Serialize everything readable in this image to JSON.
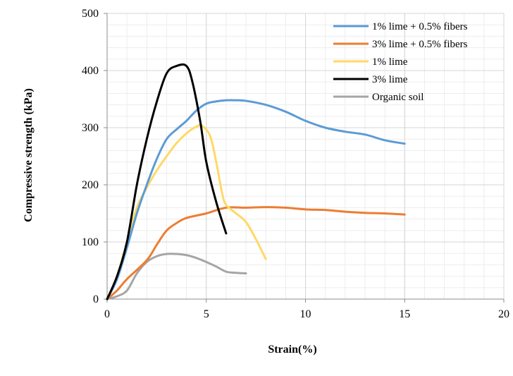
{
  "chart_data": {
    "type": "line",
    "title": "",
    "xlabel": "Strain(%)",
    "ylabel": "Compressive strength (kPa)",
    "xlim": [
      0,
      20
    ],
    "ylim": [
      0,
      500
    ],
    "x_ticks": [
      0,
      5,
      10,
      15,
      20
    ],
    "y_ticks": [
      0,
      100,
      200,
      300,
      400,
      500
    ],
    "grid": true,
    "legend_position": "top-right",
    "series": [
      {
        "name": "1% lime + 0.5% fibers",
        "color": "#5B9BD5",
        "points": [
          [
            0,
            0
          ],
          [
            0.5,
            35
          ],
          [
            1,
            90
          ],
          [
            1.5,
            150
          ],
          [
            2,
            200
          ],
          [
            2.5,
            245
          ],
          [
            3,
            280
          ],
          [
            3.5,
            297
          ],
          [
            4,
            312
          ],
          [
            4.5,
            330
          ],
          [
            5,
            342
          ],
          [
            5.5,
            346
          ],
          [
            6,
            348
          ],
          [
            6.5,
            348
          ],
          [
            7,
            347
          ],
          [
            8,
            340
          ],
          [
            9,
            328
          ],
          [
            10,
            312
          ],
          [
            11,
            300
          ],
          [
            12,
            293
          ],
          [
            13,
            288
          ],
          [
            14,
            278
          ],
          [
            15,
            272
          ]
        ]
      },
      {
        "name": "3% lime + 0.5% fibers",
        "color": "#ED7D31",
        "points": [
          [
            0,
            0
          ],
          [
            0.5,
            15
          ],
          [
            1,
            35
          ],
          [
            2,
            68
          ],
          [
            2.5,
            95
          ],
          [
            3,
            120
          ],
          [
            3.5,
            133
          ],
          [
            4,
            142
          ],
          [
            5,
            150
          ],
          [
            6,
            160
          ],
          [
            7,
            160
          ],
          [
            8,
            161
          ],
          [
            9,
            160
          ],
          [
            10,
            157
          ],
          [
            11,
            156
          ],
          [
            12,
            153
          ],
          [
            13,
            151
          ],
          [
            14,
            150
          ],
          [
            15,
            148
          ]
        ]
      },
      {
        "name": "1% lime",
        "color": "#FFD966",
        "points": [
          [
            0,
            0
          ],
          [
            0.5,
            40
          ],
          [
            1,
            100
          ],
          [
            1.5,
            160
          ],
          [
            2,
            195
          ],
          [
            2.5,
            225
          ],
          [
            3,
            250
          ],
          [
            3.5,
            273
          ],
          [
            4,
            290
          ],
          [
            4.5,
            302
          ],
          [
            4.8,
            303
          ],
          [
            5.2,
            285
          ],
          [
            5.5,
            240
          ],
          [
            5.8,
            185
          ],
          [
            6,
            165
          ],
          [
            6.5,
            150
          ],
          [
            7,
            135
          ],
          [
            7.5,
            105
          ],
          [
            8,
            70
          ]
        ]
      },
      {
        "name": "3% lime",
        "color": "#000000",
        "points": [
          [
            0,
            0
          ],
          [
            0.5,
            40
          ],
          [
            1,
            100
          ],
          [
            1.5,
            200
          ],
          [
            2,
            280
          ],
          [
            2.5,
            345
          ],
          [
            3,
            395
          ],
          [
            3.5,
            408
          ],
          [
            4,
            408
          ],
          [
            4.3,
            380
          ],
          [
            4.7,
            310
          ],
          [
            5,
            240
          ],
          [
            5.5,
            170
          ],
          [
            6,
            115
          ]
        ]
      },
      {
        "name": "Organic soil",
        "color": "#A5A5A5",
        "points": [
          [
            0,
            0
          ],
          [
            0.5,
            5
          ],
          [
            1,
            15
          ],
          [
            1.5,
            45
          ],
          [
            2,
            65
          ],
          [
            2.5,
            75
          ],
          [
            3,
            79
          ],
          [
            3.5,
            79
          ],
          [
            4,
            77
          ],
          [
            4.5,
            72
          ],
          [
            5,
            65
          ],
          [
            5.5,
            57
          ],
          [
            6,
            48
          ],
          [
            6.5,
            46
          ],
          [
            7,
            45
          ]
        ]
      }
    ]
  }
}
